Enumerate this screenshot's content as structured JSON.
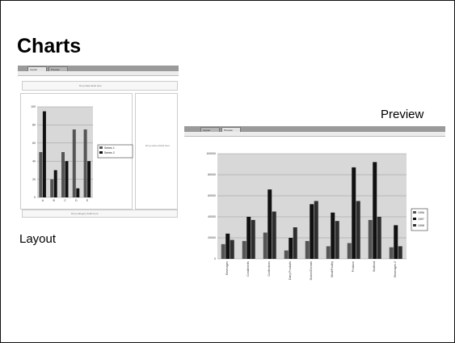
{
  "slide": {
    "title": "Charts"
  },
  "layout_shot": {
    "caption": "Layout",
    "tabs": [
      "Layout",
      "Preview"
    ],
    "drop_data": "Drop data fields here",
    "drop_series": "Drop series fields here",
    "drop_category": "Drop category fields here",
    "chart_data": {
      "type": "bar",
      "categories": [
        "A",
        "B",
        "C",
        "D",
        "E"
      ],
      "series": [
        {
          "name": "Series 1",
          "values": [
            50,
            20,
            50,
            75,
            75
          ]
        },
        {
          "name": "Series 2",
          "values": [
            95,
            30,
            40,
            10,
            40
          ]
        }
      ],
      "ylim": [
        0,
        100
      ],
      "yticks": [
        0,
        20,
        40,
        60,
        80,
        100
      ],
      "legend": "right",
      "grid": true
    }
  },
  "preview_shot": {
    "caption": "Preview",
    "tabs": [
      "Layout",
      "Preview"
    ],
    "chart_data": {
      "type": "bar",
      "categories": [
        "Beverages",
        "Condiments",
        "Confections",
        "Dairy Products",
        "Grains/Cereals",
        "Meat/Poultry",
        "Produce",
        "Seafood",
        "Beverages 2"
      ],
      "series": [
        {
          "name": "1996",
          "values": [
            14000,
            17000,
            25000,
            8000,
            17000,
            12000,
            15000,
            37000,
            11000
          ]
        },
        {
          "name": "1997",
          "values": [
            24000,
            40000,
            66000,
            20000,
            52000,
            44000,
            87000,
            92000,
            32000
          ]
        },
        {
          "name": "1998",
          "values": [
            18000,
            37000,
            45000,
            30000,
            55000,
            36000,
            55000,
            40000,
            12000
          ]
        }
      ],
      "ylim": [
        0,
        100000
      ],
      "yticks": [
        0,
        20000,
        40000,
        60000,
        80000,
        100000
      ],
      "legend": "right",
      "grid": true
    }
  }
}
